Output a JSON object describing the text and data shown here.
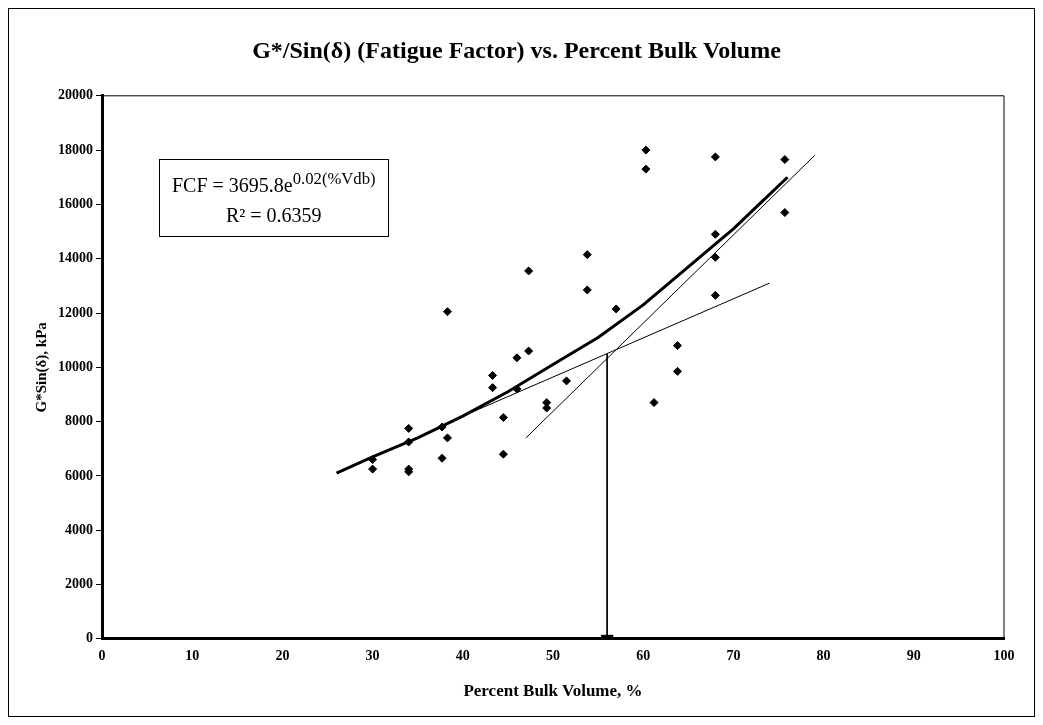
{
  "chart_data": {
    "type": "scatter",
    "title": "G*/Sin(δ) (Fatigue Factor) vs. Percent Bulk Volume",
    "xlabel": "Percent Bulk Volume, %",
    "ylabel": "G*Sin(δ), kPa",
    "annotations": [
      "FCF = 3695.8e$^{0.02(%Vdb)}$",
      "R² = 0.6359"
    ],
    "series": [
      {
        "type": "scatter",
        "color": "#000000",
        "marker": "diamond",
        "x": [
          30,
          30,
          34,
          34,
          34,
          34,
          37.7,
          37.7,
          38.3,
          38.3,
          43.3,
          43.3,
          44.5,
          44.5,
          46,
          46,
          47.3,
          47.3,
          49.3,
          49.3,
          51.5,
          53.8,
          53.8,
          57,
          60.3,
          60.3,
          61.2,
          63.8,
          63.8,
          68,
          68,
          68,
          68,
          75.7,
          75.7
        ],
        "values": [
          6600,
          6250,
          7750,
          7250,
          6250,
          6150,
          7800,
          6650,
          12050,
          7400,
          9700,
          9250,
          8150,
          6800,
          10350,
          9200,
          13550,
          10600,
          8700,
          8500,
          9500,
          14150,
          12850,
          12150,
          18000,
          17300,
          8700,
          10800,
          9850,
          17750,
          14900,
          14050,
          12650,
          17650,
          15700
        ]
      },
      {
        "type": "line",
        "color": "#000000",
        "marker": "none",
        "x": [
          26,
          30,
          35,
          40,
          45,
          50,
          55,
          60,
          65,
          70,
          76
        ],
        "values": [
          6100,
          6700,
          7400,
          8200,
          9100,
          10100,
          11100,
          12300,
          13700,
          15100,
          17000
        ]
      },
      {
        "type": "line",
        "color": "#000000",
        "marker": "none",
        "x": [
          40,
          74
        ],
        "values": [
          8200,
          13100
        ]
      },
      {
        "type": "line",
        "color": "#000000",
        "marker": "none",
        "x": [
          47,
          79
        ],
        "values": [
          7400,
          17800
        ]
      },
      {
        "type": "line",
        "color": "#000000",
        "marker": "triangle",
        "x": [
          56,
          56
        ],
        "values": [
          10500,
          0
        ]
      }
    ],
    "xlim": [
      0,
      100
    ],
    "xticks": [
      0,
      10,
      20,
      30,
      40,
      50,
      60,
      70,
      80,
      90,
      100
    ],
    "ylim": [
      0,
      20000
    ],
    "yticks": [
      0,
      2000,
      4000,
      6000,
      8000,
      10000,
      12000,
      14000,
      16000,
      18000,
      20000
    ],
    "grid": false,
    "legend": false
  }
}
